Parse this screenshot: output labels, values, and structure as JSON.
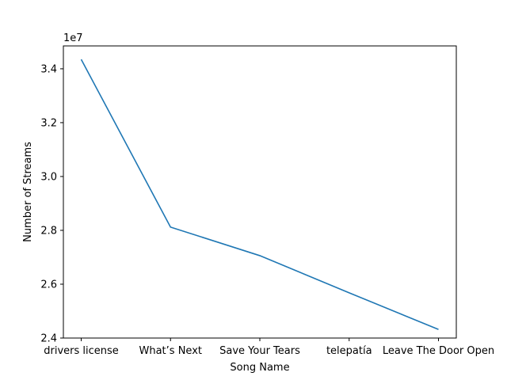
{
  "chart_data": {
    "type": "line",
    "title": "",
    "xlabel": "Song Name",
    "ylabel": "Number of Streams",
    "categories": [
      "drivers license",
      "What’s Next",
      "Save Your Tears",
      "telepatía",
      "Leave The Door Open"
    ],
    "series": [
      {
        "values": [
          34350000,
          28120000,
          27060000,
          25680000,
          24320000
        ]
      }
    ],
    "ylim": [
      24000000,
      34850000
    ],
    "yticks": [
      24000000,
      26000000,
      28000000,
      30000000,
      32000000,
      34000000
    ],
    "ytick_labels": [
      "2.4",
      "2.6",
      "2.8",
      "3.0",
      "3.2",
      "3.4"
    ],
    "y_offset_label": "1e7",
    "grid": false,
    "line_color": "#1f77b4"
  }
}
